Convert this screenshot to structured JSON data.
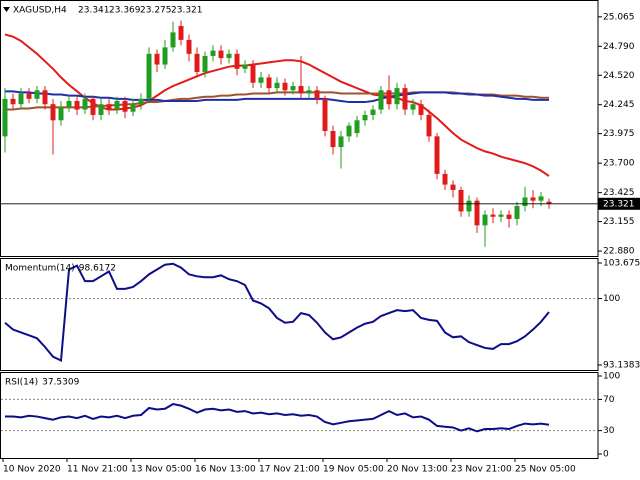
{
  "chart_data": [
    {
      "type": "candlestick",
      "title": "XAGUSD,H4",
      "categories": [
        "10 Nov 2020",
        null,
        null,
        null,
        null,
        null,
        null,
        null,
        "11 Nov 21:00",
        null,
        null,
        null,
        null,
        null,
        null,
        null,
        "13 Nov 05:00",
        null,
        null,
        null,
        null,
        null,
        null,
        null,
        "16 Nov 13:00",
        null,
        null,
        null,
        null,
        null,
        null,
        null,
        "17 Nov 21:00",
        null,
        null,
        null,
        null,
        null,
        null,
        null,
        "19 Nov 05:00",
        null,
        null,
        null,
        null,
        null,
        null,
        null,
        "20 Nov 13:00",
        null,
        null,
        null,
        null,
        null,
        null,
        null,
        "23 Nov 21:00",
        null,
        null,
        null,
        null,
        null,
        null,
        null,
        "25 Nov 05:00",
        null,
        null,
        null,
        null
      ],
      "open": [
        23.95,
        24.3,
        24.25,
        24.35,
        24.3,
        24.38,
        24.25,
        24.1,
        24.22,
        24.28,
        24.2,
        24.3,
        24.15,
        24.25,
        24.2,
        24.28,
        24.18,
        24.25,
        24.3,
        24.72,
        24.62,
        24.78,
        24.98,
        24.85,
        24.72,
        24.55,
        24.7,
        24.75,
        24.68,
        24.72,
        24.58,
        24.62,
        24.45,
        24.5,
        24.4,
        24.45,
        24.38,
        24.42,
        24.35,
        24.38,
        24.3,
        24.0,
        23.85,
        23.95,
        23.98,
        24.1,
        24.15,
        24.2,
        24.38,
        24.25,
        24.4,
        24.2,
        24.25,
        24.15,
        23.95,
        23.6,
        23.5,
        23.45,
        23.25,
        23.35,
        23.12,
        23.22,
        23.2,
        23.22,
        23.18,
        23.3,
        23.38,
        23.35,
        23.341
      ],
      "high": [
        24.4,
        24.35,
        24.4,
        24.4,
        24.42,
        24.42,
        24.3,
        24.28,
        24.33,
        24.32,
        24.35,
        24.33,
        24.3,
        24.3,
        24.32,
        24.32,
        24.3,
        24.35,
        24.78,
        24.76,
        24.85,
        25.02,
        25.03,
        24.9,
        24.78,
        24.74,
        24.8,
        24.8,
        24.76,
        24.76,
        24.66,
        24.66,
        24.55,
        24.53,
        24.5,
        24.49,
        24.46,
        24.7,
        24.42,
        24.42,
        24.33,
        24.05,
        24.0,
        24.08,
        24.14,
        24.19,
        24.24,
        24.42,
        24.52,
        24.45,
        24.44,
        24.3,
        24.29,
        24.2,
        23.98,
        23.64,
        23.54,
        23.48,
        23.4,
        23.38,
        23.26,
        23.28,
        23.26,
        23.26,
        23.34,
        23.48,
        23.45,
        23.43,
        23.369
      ],
      "low": [
        23.8,
        24.2,
        24.2,
        24.26,
        24.26,
        24.2,
        23.78,
        24.05,
        24.18,
        24.15,
        24.16,
        24.1,
        24.1,
        24.15,
        24.16,
        24.12,
        24.14,
        24.2,
        24.26,
        24.55,
        24.58,
        24.74,
        24.8,
        24.65,
        24.5,
        24.5,
        24.65,
        24.62,
        24.63,
        24.52,
        24.54,
        24.4,
        24.4,
        24.35,
        24.36,
        24.33,
        24.34,
        24.3,
        24.3,
        24.25,
        23.95,
        23.78,
        23.65,
        23.9,
        23.94,
        24.05,
        24.1,
        24.16,
        24.2,
        24.2,
        24.15,
        24.15,
        24.1,
        23.9,
        23.55,
        23.45,
        23.38,
        23.2,
        23.2,
        23.05,
        22.92,
        23.14,
        23.15,
        23.1,
        23.12,
        23.25,
        23.28,
        23.3,
        23.275
      ],
      "close": [
        24.3,
        24.25,
        24.35,
        24.3,
        24.38,
        24.25,
        24.1,
        24.22,
        24.28,
        24.2,
        24.3,
        24.15,
        24.25,
        24.2,
        24.28,
        24.18,
        24.25,
        24.3,
        24.72,
        24.62,
        24.78,
        24.92,
        24.85,
        24.72,
        24.55,
        24.7,
        24.75,
        24.68,
        24.72,
        24.58,
        24.62,
        24.45,
        24.5,
        24.4,
        24.45,
        24.38,
        24.42,
        24.35,
        24.38,
        24.3,
        24.0,
        23.85,
        23.95,
        24.05,
        24.1,
        24.15,
        24.2,
        24.38,
        24.25,
        24.4,
        24.2,
        24.25,
        24.15,
        23.95,
        23.6,
        23.5,
        23.45,
        23.25,
        23.35,
        23.12,
        23.22,
        23.2,
        23.22,
        23.18,
        23.3,
        23.38,
        23.35,
        23.39,
        23.321
      ],
      "up_color": "#1f9e1f",
      "down_color": "#e01b1b",
      "series": [
        {
          "color": "#e31a1a",
          "values": [
            24.9,
            24.88,
            24.84,
            24.78,
            24.72,
            24.65,
            24.58,
            24.5,
            24.43,
            24.37,
            24.31,
            24.26,
            24.22,
            24.2,
            24.2,
            24.21,
            24.22,
            24.24,
            24.28,
            24.33,
            24.38,
            24.42,
            24.45,
            24.48,
            24.51,
            24.54,
            24.56,
            24.58,
            24.6,
            24.61,
            24.61,
            24.62,
            24.63,
            24.64,
            24.65,
            24.66,
            24.66,
            24.65,
            24.62,
            24.58,
            24.54,
            24.5,
            24.46,
            24.43,
            24.4,
            24.37,
            24.34,
            24.33,
            24.32,
            24.31,
            24.28,
            24.27,
            24.24,
            24.18,
            24.12,
            24.05,
            23.98,
            23.92,
            23.88,
            23.84,
            23.81,
            23.79,
            23.76,
            23.74,
            23.72,
            23.7,
            23.67,
            23.63,
            23.58
          ]
        },
        {
          "color": "#a0522d",
          "values": [
            24.2,
            24.2,
            24.21,
            24.21,
            24.22,
            24.22,
            24.22,
            24.22,
            24.22,
            24.22,
            24.22,
            24.23,
            24.23,
            24.24,
            24.24,
            24.25,
            24.25,
            24.26,
            24.27,
            24.27,
            24.28,
            24.29,
            24.3,
            24.3,
            24.31,
            24.32,
            24.32,
            24.33,
            24.33,
            24.34,
            24.34,
            24.35,
            24.35,
            24.35,
            24.36,
            24.36,
            24.36,
            24.36,
            24.36,
            24.36,
            24.36,
            24.36,
            24.35,
            24.35,
            24.35,
            24.35,
            24.35,
            24.35,
            24.35,
            24.35,
            24.35,
            24.36,
            24.36,
            24.36,
            24.36,
            24.36,
            24.36,
            24.35,
            24.35,
            24.34,
            24.34,
            24.34,
            24.33,
            24.33,
            24.33,
            24.32,
            24.32,
            24.31,
            24.31
          ]
        },
        {
          "color": "#1f2fa8",
          "values": [
            24.37,
            24.37,
            24.36,
            24.36,
            24.35,
            24.35,
            24.34,
            24.34,
            24.33,
            24.33,
            24.32,
            24.32,
            24.31,
            24.31,
            24.3,
            24.3,
            24.29,
            24.29,
            24.29,
            24.29,
            24.28,
            24.28,
            24.28,
            24.28,
            24.28,
            24.29,
            24.29,
            24.29,
            24.29,
            24.29,
            24.3,
            24.3,
            24.3,
            24.3,
            24.3,
            24.3,
            24.3,
            24.3,
            24.3,
            24.3,
            24.3,
            24.29,
            24.28,
            24.27,
            24.27,
            24.27,
            24.28,
            24.3,
            24.32,
            24.33,
            24.34,
            24.35,
            24.36,
            24.36,
            24.36,
            24.36,
            24.35,
            24.35,
            24.34,
            24.34,
            24.33,
            24.33,
            24.32,
            24.31,
            24.3,
            24.3,
            24.29,
            24.29,
            24.29
          ]
        }
      ],
      "ylim": [
        22.834,
        25.222
      ],
      "yticks": [
        25.065,
        {
          "value": 24.79,
          "label": "24.790"
        },
        {
          "value": 24.52,
          "label": "24.520"
        },
        24.245,
        23.975,
        {
          "value": 23.7,
          "label": "23.700"
        },
        23.425,
        23.155,
        {
          "value": 22.88,
          "label": "22.880"
        }
      ]
    },
    {
      "type": "line",
      "title": "Momentum(14)",
      "color": "#0d0d8a",
      "values": [
        97.5,
        96.8,
        96.5,
        96.2,
        95.9,
        95.0,
        94.0,
        93.6,
        103.0,
        103.4,
        101.8,
        101.8,
        102.3,
        102.8,
        101.0,
        101.0,
        101.2,
        101.8,
        102.5,
        103.0,
        103.5,
        103.6,
        103.2,
        102.5,
        102.3,
        102.2,
        102.2,
        102.4,
        102.0,
        101.8,
        101.4,
        99.8,
        99.5,
        99.0,
        98.0,
        97.5,
        97.6,
        98.5,
        98.3,
        97.5,
        96.5,
        95.8,
        96.0,
        96.5,
        97.0,
        97.4,
        97.6,
        98.2,
        98.5,
        98.8,
        98.7,
        98.8,
        98.0,
        97.8,
        97.7,
        96.5,
        96.0,
        96.1,
        95.5,
        95.2,
        94.9,
        94.8,
        95.3,
        95.3,
        95.6,
        96.1,
        96.8,
        97.6,
        98.6172
      ],
      "ylim": [
        93.1383,
        103.6752
      ],
      "yticks": [
        103.6752,
        100,
        93.1383
      ],
      "level_lines": true
    },
    {
      "type": "line",
      "title": "RSI(14)",
      "color": "#0d0d8a",
      "values": [
        48,
        48,
        47,
        49,
        48,
        46,
        44,
        47,
        48,
        46,
        49,
        45,
        48,
        47,
        49,
        46,
        49,
        50,
        59,
        57,
        58,
        64,
        62,
        58,
        53,
        57,
        58,
        56,
        57,
        54,
        55,
        52,
        53,
        51,
        52,
        50,
        51,
        49,
        50,
        48,
        41,
        38,
        40,
        42,
        43,
        44,
        45,
        50,
        55,
        50,
        52,
        47,
        48,
        44,
        36,
        35,
        34,
        30,
        33,
        29,
        32,
        32,
        33,
        32,
        36,
        39,
        38,
        39,
        37.5309
      ],
      "ylim": [
        0,
        100
      ],
      "yticks": [
        100,
        70,
        30,
        0
      ],
      "level_lines": true
    }
  ]
}
